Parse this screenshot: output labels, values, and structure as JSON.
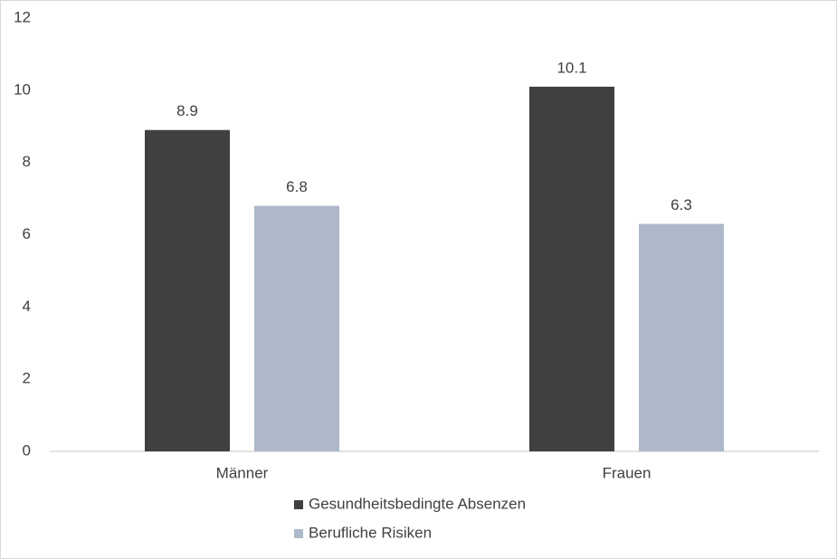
{
  "chart_data": {
    "type": "bar",
    "categories": [
      "Männer",
      "Frauen"
    ],
    "series": [
      {
        "name": "Gesundheitsbedingte Absenzen",
        "color": "#404040",
        "values": [
          8.9,
          10.1
        ]
      },
      {
        "name": "Berufliche Risiken",
        "color": "#adb9ca",
        "values": [
          6.8,
          6.3
        ]
      }
    ],
    "ylim": [
      0,
      12
    ],
    "yticks": [
      0,
      2,
      4,
      6,
      8,
      10,
      12
    ],
    "grid": false,
    "legend": "bottom"
  }
}
